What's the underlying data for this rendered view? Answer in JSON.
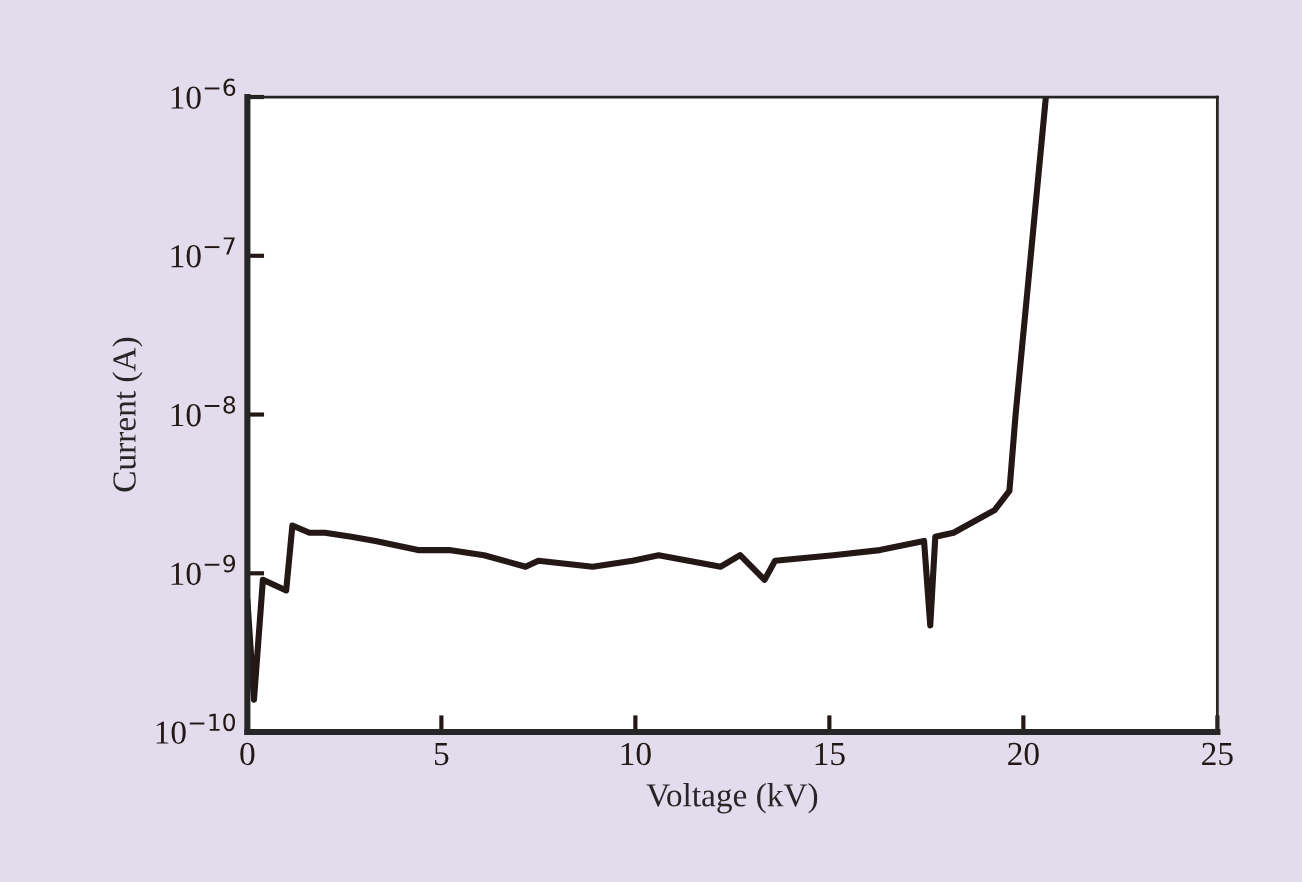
{
  "chart_data": {
    "type": "line",
    "xlabel": "Voltage (kV)",
    "ylabel": "Current (A)",
    "x": [
      0,
      0.17,
      0.4,
      1.0,
      1.16,
      1.6,
      2.0,
      2.68,
      3.3,
      4.4,
      5.2,
      6.1,
      7.17,
      7.5,
      8.9,
      9.93,
      10.6,
      12.2,
      12.7,
      13.33,
      13.6,
      15.1,
      16.3,
      17.44,
      17.6,
      17.73,
      18.2,
      19.26,
      19.64,
      19.8,
      20.12,
      20.58
    ],
    "series": [
      {
        "color": "#231815",
        "values": [
          6.8e-10,
          1.6e-10,
          9.1e-10,
          7.8e-10,
          2e-09,
          1.8e-09,
          1.8e-09,
          1.7e-09,
          1.6e-09,
          1.4e-09,
          1.4e-09,
          1.3e-09,
          1.1e-09,
          1.2e-09,
          1.1e-09,
          1.2e-09,
          1.3e-09,
          1.1e-09,
          1.3e-09,
          9.1e-10,
          1.2e-09,
          1.3e-09,
          1.4e-09,
          1.6e-09,
          4.7e-10,
          1.7e-09,
          1.8e-09,
          2.5e-09,
          3.3e-09,
          1e-08,
          6.6e-08,
          1e-06
        ]
      }
    ],
    "log": true,
    "xlim": [
      0,
      25
    ],
    "xticks": [
      0,
      5,
      10,
      15,
      20,
      25
    ],
    "ylim": [
      1e-10,
      1e-06
    ],
    "yticks": [
      {
        "value": 1e-10,
        "label": "10$^{−10}$"
      },
      {
        "value": 1e-09,
        "label": "10$^{−9}$"
      },
      {
        "value": 1e-08,
        "label": "10$^{−8}$"
      },
      {
        "value": 1e-07,
        "label": "10$^{−7}$"
      },
      {
        "value": 1e-06,
        "label": "10$^{−6}$"
      }
    ],
    "grid": false,
    "legend": false
  }
}
